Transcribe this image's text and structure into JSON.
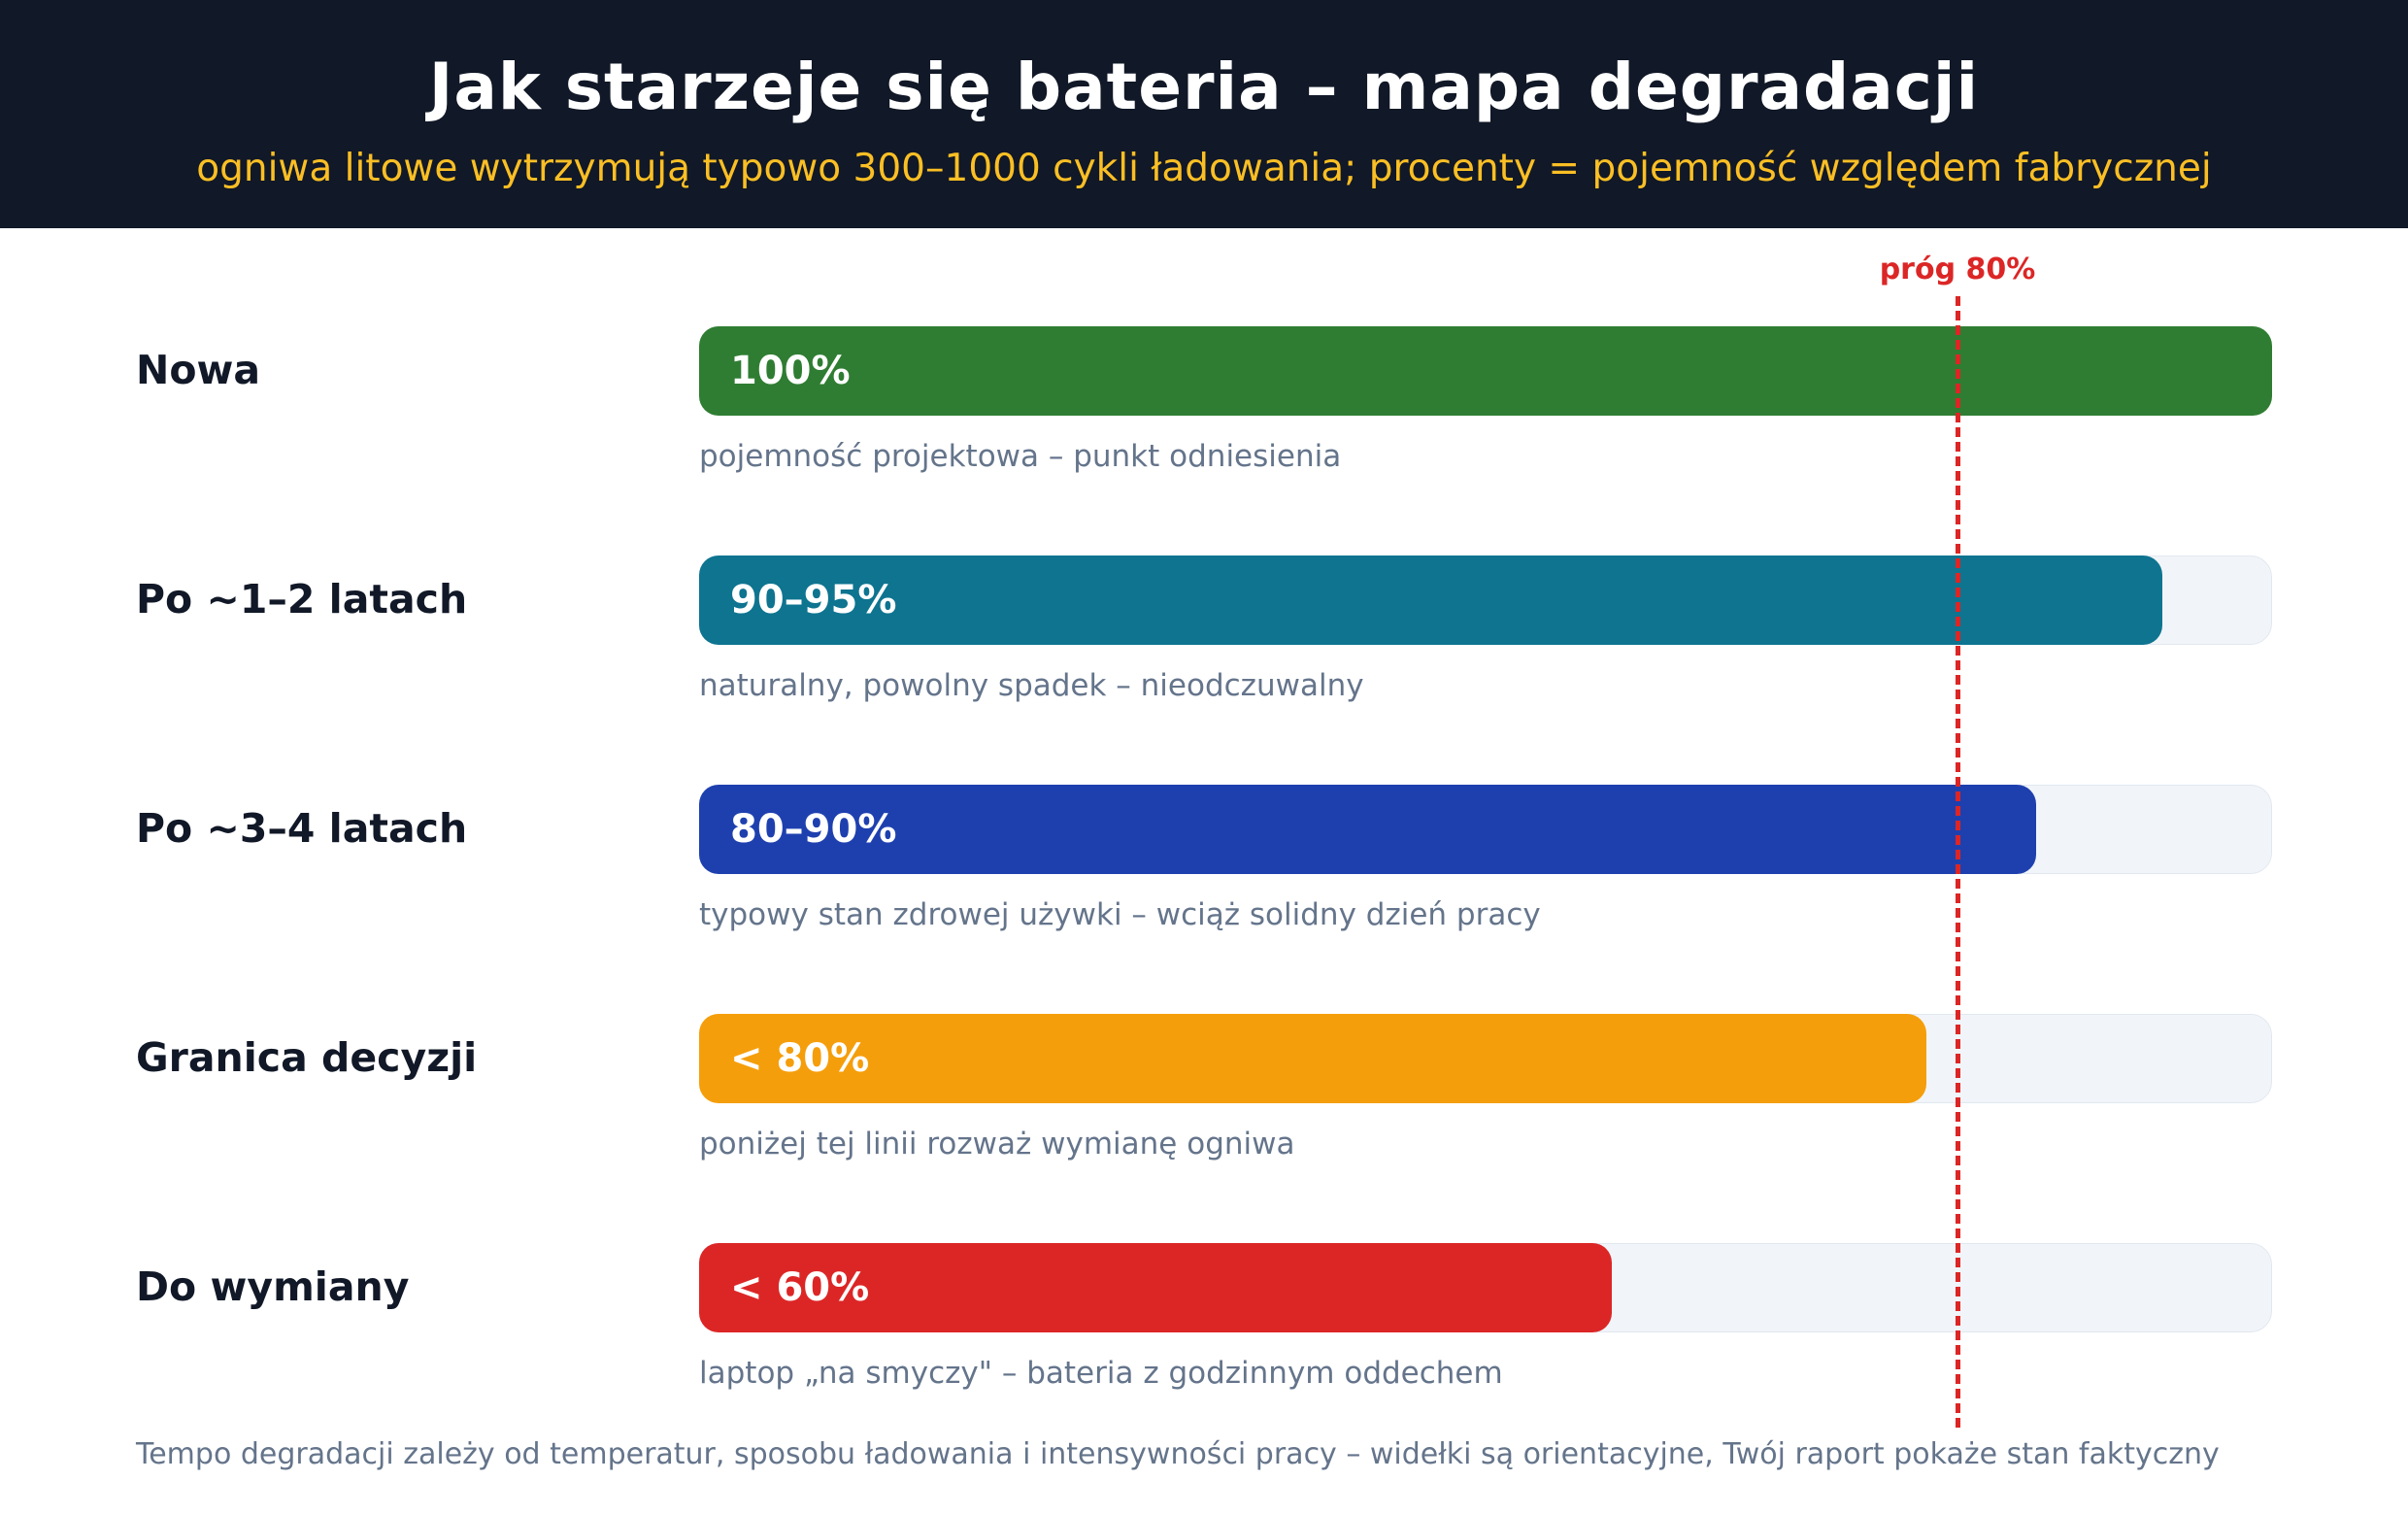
{
  "header": {
    "title": "Jak starzeje się bateria – mapa degradacji",
    "subtitle": "ogniwa litowe wytrzymują typowo 300–1000 cykli ładowania; procenty = pojemność względem fabrycznej"
  },
  "threshold": {
    "label": "próg 80%",
    "value": 80
  },
  "footnote": "Tempo degradacji zależy od temperatur, sposobu ładowania i intensywności pracy – widełki są orientacyjne, Twój raport pokaże stan faktyczny",
  "chart_data": {
    "type": "bar",
    "orientation": "horizontal",
    "xlim": [
      0,
      100
    ],
    "categories": [
      "Nowa",
      "Po ~1–2 latach",
      "Po ~3–4 latach",
      "Granica decyzji",
      "Do wymiany"
    ],
    "values": [
      100,
      93,
      85,
      78,
      58
    ],
    "value_labels": [
      "100%",
      "90–95%",
      "80–90%",
      "< 80%",
      "< 60%"
    ],
    "notes": [
      "pojemność projektowa – punkt odniesienia",
      "naturalny, powolny spadek – nieodczuwalny",
      "typowy stan zdrowej używki – wciąż solidny dzień pracy",
      "poniżej tej linii rozważ wymianę ogniwa",
      "laptop „na smyczy\" – bateria z godzinnym oddechem"
    ],
    "colors": [
      "#2f7d32",
      "#0e7490",
      "#1e40af",
      "#f59e0b",
      "#dc2626"
    ],
    "reference_line": {
      "value": 80,
      "color": "#dc2626",
      "style": "dashed"
    }
  }
}
